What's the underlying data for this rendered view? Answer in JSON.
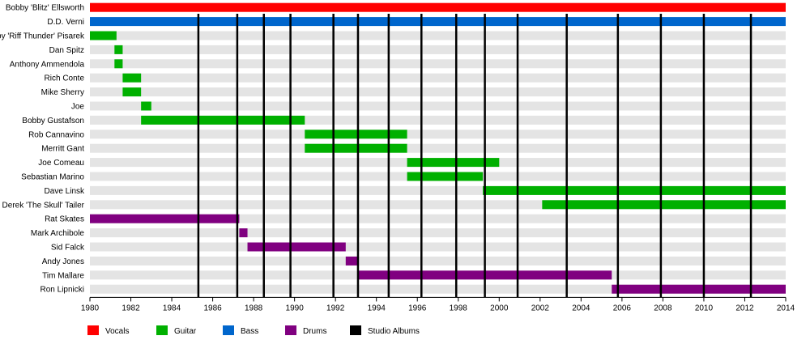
{
  "chart_data": {
    "type": "timeline",
    "title": "",
    "xlabel": "",
    "ylabel": "",
    "xlim": [
      1980,
      2014
    ],
    "xticks": [
      1980,
      1982,
      1984,
      1986,
      1988,
      1990,
      1992,
      1994,
      1996,
      1998,
      2000,
      2002,
      2004,
      2006,
      2008,
      2010,
      2012,
      2014
    ],
    "colors": {
      "Vocals": "#ff0000",
      "Guitar": "#00b000",
      "Bass": "#0066cc",
      "Drums": "#800080",
      "Studio Albums": "#000000"
    },
    "legend": [
      "Vocals",
      "Guitar",
      "Bass",
      "Drums",
      "Studio Albums"
    ],
    "legend_position": "bottom",
    "studio_albums": [
      1985.3,
      1987.2,
      1988.5,
      1989.8,
      1991.9,
      1993.1,
      1994.6,
      1996.2,
      1997.9,
      1999.3,
      2000.9,
      2003.3,
      2005.8,
      2007.9,
      2010.0,
      2012.3
    ],
    "members": [
      {
        "name": "Bobby 'Blitz' Ellsworth",
        "role": "Vocals",
        "periods": [
          [
            1980,
            2014
          ]
        ]
      },
      {
        "name": "D.D. Verni",
        "role": "Bass",
        "periods": [
          [
            1980,
            2014
          ]
        ]
      },
      {
        "name": "Bobby 'Riff Thunder' Pisarek",
        "role": "Guitar",
        "periods": [
          [
            1980,
            1981.3
          ]
        ]
      },
      {
        "name": "Dan Spitz",
        "role": "Guitar",
        "periods": [
          [
            1981.2,
            1981.6
          ]
        ]
      },
      {
        "name": "Anthony Ammendola",
        "role": "Guitar",
        "periods": [
          [
            1981.2,
            1981.6
          ]
        ]
      },
      {
        "name": "Rich Conte",
        "role": "Guitar",
        "periods": [
          [
            1981.6,
            1982.5
          ]
        ]
      },
      {
        "name": "Mike Sherry",
        "role": "Guitar",
        "periods": [
          [
            1981.6,
            1982.5
          ]
        ]
      },
      {
        "name": "Joe",
        "role": "Guitar",
        "periods": [
          [
            1982.5,
            1983.0
          ]
        ]
      },
      {
        "name": "Bobby Gustafson",
        "role": "Guitar",
        "periods": [
          [
            1982.5,
            1990.5
          ]
        ]
      },
      {
        "name": "Rob Cannavino",
        "role": "Guitar",
        "periods": [
          [
            1990.5,
            1995.5
          ]
        ]
      },
      {
        "name": "Merritt Gant",
        "role": "Guitar",
        "periods": [
          [
            1990.5,
            1995.5
          ]
        ]
      },
      {
        "name": "Joe Comeau",
        "role": "Guitar",
        "periods": [
          [
            1995.5,
            2000.0
          ]
        ]
      },
      {
        "name": "Sebastian Marino",
        "role": "Guitar",
        "periods": [
          [
            1995.5,
            1999.2
          ]
        ]
      },
      {
        "name": "Dave Linsk",
        "role": "Guitar",
        "periods": [
          [
            1999.2,
            2014
          ]
        ]
      },
      {
        "name": "Derek 'The Skull' Tailer",
        "role": "Guitar",
        "periods": [
          [
            2002.1,
            2014
          ]
        ]
      },
      {
        "name": "Rat Skates",
        "role": "Drums",
        "periods": [
          [
            1980,
            1987.3
          ]
        ]
      },
      {
        "name": "Mark Archibole",
        "role": "Drums",
        "periods": [
          [
            1987.3,
            1987.7
          ]
        ]
      },
      {
        "name": "Sid Falck",
        "role": "Drums",
        "periods": [
          [
            1987.7,
            1992.5
          ]
        ]
      },
      {
        "name": "Andy Jones",
        "role": "Drums",
        "periods": [
          [
            1992.5,
            1993.1
          ]
        ]
      },
      {
        "name": "Tim Mallare",
        "role": "Drums",
        "periods": [
          [
            1993.1,
            2005.5
          ]
        ]
      },
      {
        "name": "Ron Lipnicki",
        "role": "Drums",
        "periods": [
          [
            2005.5,
            2014
          ]
        ]
      }
    ]
  }
}
